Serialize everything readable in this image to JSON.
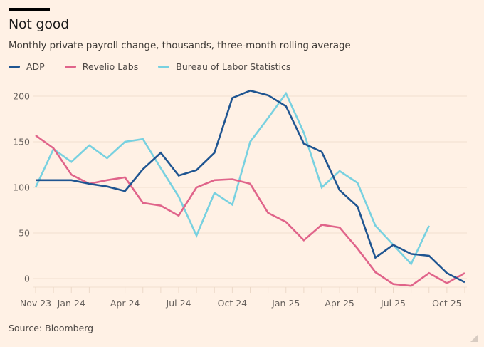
{
  "header": {
    "title": "Not good",
    "subtitle": "Monthly private payroll change, thousands, three-month rolling average"
  },
  "footer": {
    "source": "Source: Bloomberg"
  },
  "chart_data": {
    "type": "line",
    "title": "Not good",
    "subtitle": "Monthly private payroll change, thousands, three-month rolling average",
    "xlabel": "",
    "ylabel": "",
    "ylim": [
      -10,
      210
    ],
    "yticks": [
      0,
      50,
      100,
      150,
      200
    ],
    "grid": true,
    "legend": "top-left",
    "x": [
      "Nov 23",
      "Dec 23",
      "Jan 24",
      "Feb 24",
      "Mar 24",
      "Apr 24",
      "May 24",
      "Jun 24",
      "Jul 24",
      "Aug 24",
      "Sep 24",
      "Oct 24",
      "Nov 24",
      "Dec 24",
      "Jan 25",
      "Feb 25",
      "Mar 25",
      "Apr 25",
      "May 25",
      "Jun 25",
      "Jul 25",
      "Aug 25",
      "Sep 25",
      "Oct 25",
      "Nov 25"
    ],
    "xtick_labels": [
      {
        "index": 0,
        "label": "Nov 23"
      },
      {
        "index": 2,
        "label": "Jan 24"
      },
      {
        "index": 5,
        "label": "Apr 24"
      },
      {
        "index": 8,
        "label": "Jul 24"
      },
      {
        "index": 11,
        "label": "Oct 24"
      },
      {
        "index": 14,
        "label": "Jan 25"
      },
      {
        "index": 17,
        "label": "Apr 25"
      },
      {
        "index": 20,
        "label": "Jul 25"
      },
      {
        "index": 23,
        "label": "Oct 25"
      }
    ],
    "series": [
      {
        "name": "ADP",
        "color": "#1f5591",
        "values": [
          108,
          108,
          108,
          104,
          101,
          96,
          120,
          138,
          113,
          119,
          138,
          198,
          206,
          201,
          189,
          148,
          139,
          97,
          79,
          23,
          37,
          27,
          25,
          6,
          -4
        ]
      },
      {
        "name": "Revelio Labs",
        "color": "#e0648a",
        "values": [
          157,
          143,
          114,
          104,
          108,
          111,
          83,
          80,
          69,
          100,
          108,
          109,
          104,
          72,
          62,
          42,
          59,
          56,
          33,
          7,
          -6,
          -8,
          6,
          -5,
          6
        ]
      },
      {
        "name": "Bureau of Labor Statistics",
        "color": "#78d1e0",
        "values": [
          100,
          142,
          128,
          146,
          132,
          150,
          153,
          121,
          90,
          47,
          94,
          81,
          150,
          176,
          203,
          160,
          100,
          118,
          105,
          58,
          37,
          16,
          58,
          null,
          null
        ]
      }
    ]
  }
}
